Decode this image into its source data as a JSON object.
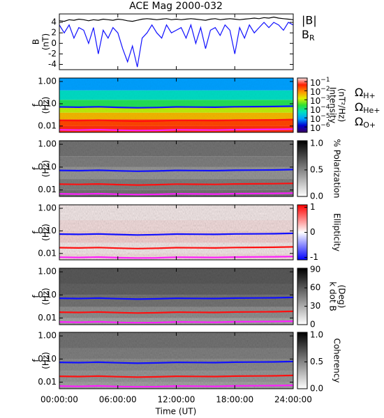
{
  "time_axis": {
    "label": "Time (UT)",
    "xlim": [
      0,
      24
    ],
    "xticks": [
      {
        "value": 0,
        "label": "00:00:00"
      },
      {
        "value": 6,
        "label": "06:00:00"
      },
      {
        "value": 12,
        "label": "12:00:00"
      },
      {
        "value": 18,
        "label": "18:00:00"
      },
      {
        "value": 24,
        "label": "24:00:00"
      }
    ]
  },
  "gyrofrequency": {
    "x": [
      0,
      2,
      4,
      6,
      8,
      10,
      12,
      14,
      16,
      18,
      20,
      22,
      24
    ],
    "series": [
      {
        "name": "Ω",
        "subscript": "H+",
        "color": "#1010ff",
        "values": [
          0.072,
          0.07,
          0.073,
          0.069,
          0.066,
          0.068,
          0.072,
          0.071,
          0.07,
          0.073,
          0.074,
          0.075,
          0.078
        ]
      },
      {
        "name": "Ω",
        "subscript": "He+",
        "color": "#ff1010",
        "values": [
          0.018,
          0.0175,
          0.0183,
          0.0172,
          0.0165,
          0.017,
          0.018,
          0.0178,
          0.0175,
          0.0183,
          0.0185,
          0.0188,
          0.0195
        ]
      },
      {
        "name": "Ω",
        "subscript": "O+",
        "color": "#ff20ff",
        "values": [
          0.0068,
          0.0066,
          0.0069,
          0.0065,
          0.0063,
          0.0064,
          0.0068,
          0.0067,
          0.0066,
          0.0069,
          0.007,
          0.0071,
          0.0073
        ]
      }
    ]
  },
  "chart_data": [
    {
      "type": "line",
      "title": "ACE Mag 2000-032",
      "ylabel": [
        "B",
        "(nT)"
      ],
      "ylim": [
        -5,
        5.6
      ],
      "yticks": [
        -4,
        -2,
        0,
        2,
        4
      ],
      "x": [
        0,
        0.5,
        1,
        1.5,
        2,
        2.5,
        3,
        3.5,
        4,
        4.5,
        5,
        5.5,
        6,
        6.5,
        7,
        7.5,
        8,
        8.5,
        9,
        9.5,
        10,
        10.5,
        11,
        11.5,
        12,
        12.5,
        13,
        13.5,
        14,
        14.5,
        15,
        15.5,
        16,
        16.5,
        17,
        17.5,
        18,
        18.5,
        19,
        19.5,
        20,
        20.5,
        21,
        21.5,
        22,
        22.5,
        23,
        23.5,
        24
      ],
      "series": [
        {
          "name": "|B|",
          "color": "#000000",
          "values": [
            4.3,
            4.2,
            4.5,
            4.4,
            4.6,
            4.5,
            4.3,
            4.5,
            4.4,
            4.6,
            4.5,
            4.4,
            4.6,
            4.5,
            4.3,
            4.2,
            4.4,
            4.6,
            4.7,
            4.6,
            4.5,
            4.6,
            4.7,
            4.5,
            4.6,
            4.5,
            4.6,
            4.7,
            4.6,
            4.5,
            4.4,
            4.6,
            4.7,
            4.5,
            4.6,
            4.7,
            4.6,
            4.5,
            4.6,
            4.7,
            4.8,
            4.7,
            4.9,
            4.8,
            5.0,
            4.8,
            4.7,
            4.6,
            4.5
          ]
        },
        {
          "name": "B",
          "subscript": "R",
          "color": "#1010ff",
          "values": [
            3.5,
            2,
            3.5,
            1,
            3,
            2.5,
            0,
            3,
            -2,
            2.5,
            1,
            3,
            2,
            -1,
            -3.5,
            -0.5,
            -4.5,
            1,
            2,
            3.5,
            2,
            1,
            3.5,
            2,
            2.5,
            3,
            1,
            3.5,
            0,
            3,
            -1,
            2.5,
            3,
            1.5,
            3.5,
            2.5,
            -2,
            3,
            1,
            3.5,
            2,
            3,
            4,
            3,
            4,
            3.5,
            2.5,
            4,
            3.5
          ]
        }
      ]
    },
    {
      "type": "spectrogram",
      "ylabel": [
        "f",
        "(Hz)"
      ],
      "log_scale": true,
      "ylim": [
        0.0052,
        1.43
      ],
      "yticks": [
        {
          "value": 0.01,
          "label": "0.01"
        },
        {
          "value": 0.1,
          "label": "0.10"
        },
        {
          "value": 1,
          "label": "1.00"
        }
      ],
      "f_edges": [
        0.0052,
        0.01,
        0.02,
        0.04,
        0.07,
        0.15,
        0.4,
        1.43
      ],
      "values": [
        -1.3,
        -1.6,
        -2.4,
        -3.0,
        -3.8,
        -4.4,
        -5.1
      ],
      "colorbar": {
        "label": [
          "Intensity",
          "(nT²/Hz)"
        ],
        "lim": [
          -6.6,
          -0.6
        ],
        "colors": [
          "#3a0060",
          "#0000d0",
          "#00a0ff",
          "#00e0c0",
          "#30e030",
          "#e0f000",
          "#ff9000",
          "#ff2000",
          "#ffe0e0"
        ],
        "ticks": [
          {
            "value": -1,
            "label": "10",
            "power": "−1"
          },
          {
            "value": -2,
            "label": "10",
            "power": "−2"
          },
          {
            "value": -3,
            "label": "10",
            "power": "−3"
          },
          {
            "value": -4,
            "label": "10",
            "power": "−4"
          },
          {
            "value": -5,
            "label": "10",
            "power": "−5"
          },
          {
            "value": -6,
            "label": "10",
            "power": "−6"
          }
        ]
      }
    },
    {
      "type": "spectrogram",
      "ylabel": [
        "f",
        "(Hz)"
      ],
      "log_scale": true,
      "ylim": [
        0.0052,
        1.43
      ],
      "yticks": [
        {
          "value": 0.01,
          "label": "0.01"
        },
        {
          "value": 0.1,
          "label": "0.10"
        },
        {
          "value": 1,
          "label": "1.00"
        }
      ],
      "f_edges": [
        0.0052,
        0.01,
        0.03,
        0.1,
        0.3,
        1.43
      ],
      "values": [
        0.55,
        0.5,
        0.4,
        0.5,
        0.55
      ],
      "colorbar": {
        "label": [
          "% Polarization"
        ],
        "lim": [
          0,
          1.05
        ],
        "colors": [
          "#ffffff",
          "#000000"
        ],
        "ticks": [
          {
            "value": 0,
            "label": "0.0"
          },
          {
            "value": 0.5,
            "label": "0.5"
          },
          {
            "value": 1,
            "label": "1.0"
          }
        ]
      }
    },
    {
      "type": "spectrogram",
      "ylabel": [
        "f",
        "(Hz)"
      ],
      "log_scale": true,
      "ylim": [
        0.0052,
        1.43
      ],
      "yticks": [
        {
          "value": 0.01,
          "label": "0.01"
        },
        {
          "value": 0.1,
          "label": "0.10"
        },
        {
          "value": 1,
          "label": "1.00"
        }
      ],
      "f_edges": [
        0.0052,
        0.01,
        0.03,
        0.1,
        0.3,
        1.43
      ],
      "values": [
        0.1,
        0.05,
        0.15,
        0.1,
        0.05
      ],
      "colorbar": {
        "label": [
          "Ellipticity"
        ],
        "lim": [
          -1.1,
          1.1
        ],
        "colors": [
          "#0000ff",
          "#ffffff",
          "#ff0000"
        ],
        "ticks": [
          -1,
          0,
          1
        ]
      }
    },
    {
      "type": "spectrogram",
      "ylabel": [
        "f",
        "(Hz)"
      ],
      "log_scale": true,
      "ylim": [
        0.0052,
        1.43
      ],
      "yticks": [
        {
          "value": 0.01,
          "label": "0.01"
        },
        {
          "value": 0.1,
          "label": "0.10"
        },
        {
          "value": 1,
          "label": "1.00"
        }
      ],
      "f_edges": [
        0.0052,
        0.01,
        0.03,
        0.1,
        0.3,
        1.43
      ],
      "values": [
        30,
        38,
        48,
        55,
        58
      ],
      "colorbar": {
        "label": [
          "k dot B",
          "(Deg)"
        ],
        "lim": [
          0,
          92
        ],
        "colors": [
          "#ffffff",
          "#000000"
        ],
        "ticks": [
          0,
          30,
          60,
          90
        ]
      }
    },
    {
      "type": "spectrogram",
      "ylabel": [
        "f",
        "(Hz)"
      ],
      "log_scale": true,
      "ylim": [
        0.0052,
        1.43
      ],
      "yticks": [
        {
          "value": 0.01,
          "label": "0.01"
        },
        {
          "value": 0.1,
          "label": "0.10"
        },
        {
          "value": 1,
          "label": "1.00"
        }
      ],
      "f_edges": [
        0.0052,
        0.01,
        0.03,
        0.1,
        0.3,
        1.43
      ],
      "values": [
        0.35,
        0.4,
        0.45,
        0.5,
        0.55
      ],
      "colorbar": {
        "label": [
          "Coherency"
        ],
        "lim": [
          0,
          1.05
        ],
        "colors": [
          "#ffffff",
          "#000000"
        ],
        "ticks": [
          {
            "value": 0,
            "label": "0.0"
          },
          {
            "value": 0.5,
            "label": "0.5"
          },
          {
            "value": 1,
            "label": "1.0"
          }
        ]
      }
    }
  ]
}
